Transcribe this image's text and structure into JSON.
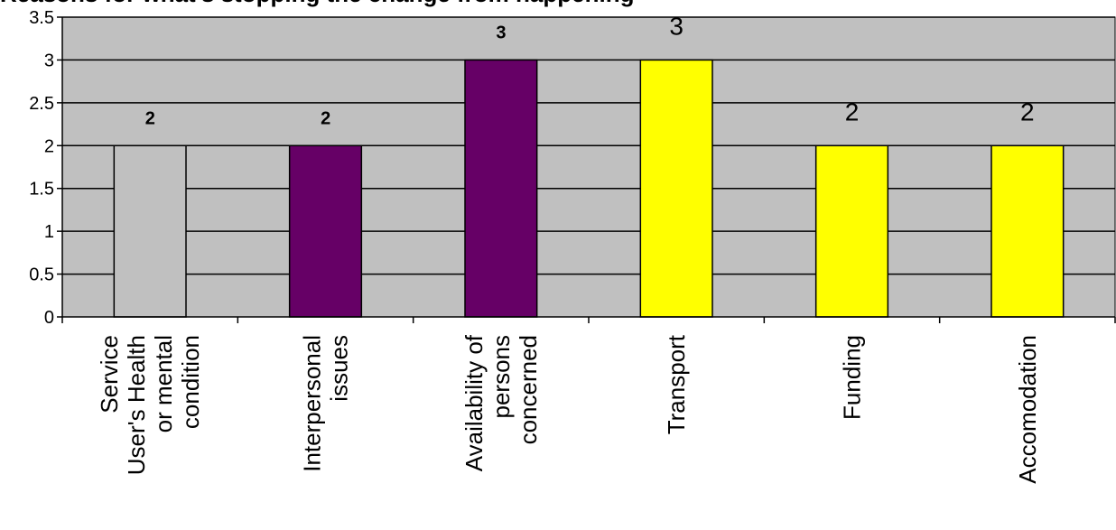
{
  "chart_data": {
    "type": "bar",
    "title": "Reasons for what's stopping the change from happening",
    "categories": [
      "Service User's Health or mental condition",
      "Interpersonal issues",
      "Availability of persons concerned",
      "Transport",
      "Funding",
      "Accomodation"
    ],
    "category_label_lines": [
      [
        "Service",
        "User's Health",
        "or mental",
        "condition"
      ],
      [
        "Interpersonal",
        "issues"
      ],
      [
        "Availability of",
        "persons",
        "concerned"
      ],
      [
        "Transport"
      ],
      [
        "Funding"
      ],
      [
        "Accomodation"
      ]
    ],
    "values": [
      2,
      2,
      3,
      3,
      2,
      2
    ],
    "data_labels": [
      "2",
      "2",
      "3",
      "3",
      "2",
      "2"
    ],
    "bar_colors": [
      "#c0c0c0",
      "#660066",
      "#660066",
      "#ffff00",
      "#ffff00",
      "#ffff00"
    ],
    "data_label_bold": [
      true,
      true,
      true,
      false,
      false,
      false
    ],
    "ylim": [
      0,
      3.5
    ],
    "yticks": [
      "0",
      "0.5",
      "1",
      "1.5",
      "2",
      "2.5",
      "3",
      "3.5"
    ],
    "grid": true,
    "plot_background": "#c0c0c0",
    "xlabel": "",
    "ylabel": ""
  }
}
